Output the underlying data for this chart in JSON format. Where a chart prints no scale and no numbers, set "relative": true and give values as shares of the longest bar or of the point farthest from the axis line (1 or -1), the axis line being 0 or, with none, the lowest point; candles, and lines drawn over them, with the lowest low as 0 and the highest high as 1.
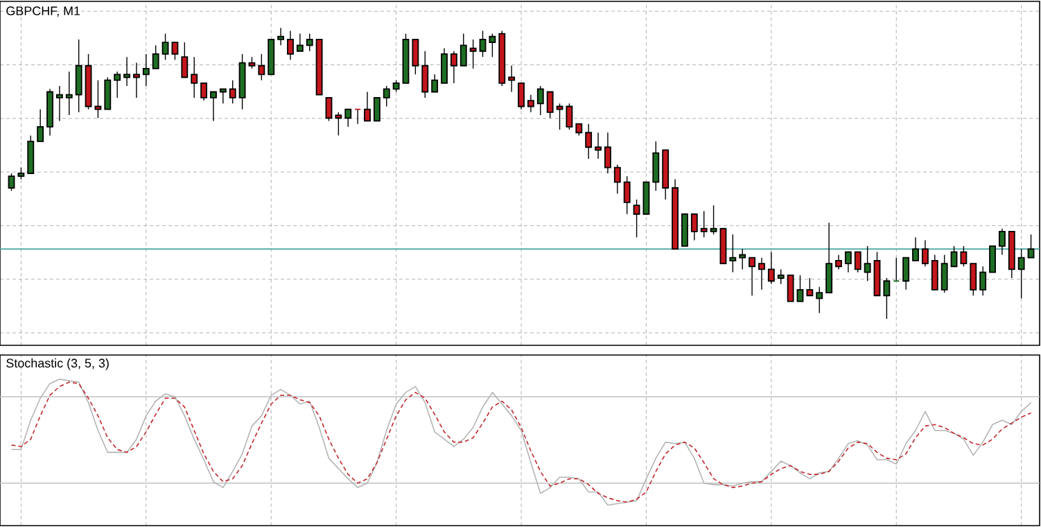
{
  "chart_data": [
    {
      "type": "candlestick",
      "title": "GBPCHF, M1",
      "relative": true,
      "grid": true,
      "categories": [
        null,
        null,
        null,
        null,
        null,
        null,
        null,
        null,
        null,
        null,
        null,
        null,
        null,
        null,
        null,
        null,
        null,
        null,
        null,
        null,
        null,
        null,
        null,
        null,
        null,
        null,
        null,
        null,
        null,
        null,
        null,
        null,
        null,
        null,
        null,
        null,
        null,
        null,
        null,
        null,
        null,
        null,
        null,
        null,
        null,
        null,
        null,
        null,
        null,
        null,
        null,
        null,
        null,
        null,
        null,
        null,
        null,
        null,
        null,
        null,
        null,
        null,
        null,
        null,
        null,
        null,
        null,
        null,
        null,
        null,
        null,
        null,
        null,
        null,
        null,
        null,
        null,
        null,
        null,
        null,
        null,
        null,
        null,
        null,
        null,
        null,
        null,
        null,
        null,
        null,
        null,
        null,
        null,
        null,
        null,
        null,
        null,
        null,
        null,
        null,
        null,
        null,
        null,
        null,
        null,
        null,
        null
      ],
      "ohlc": [
        [
          0.45,
          0.5,
          0.44,
          0.49
        ],
        [
          0.49,
          0.52,
          0.48,
          0.5
        ],
        [
          0.5,
          0.63,
          0.5,
          0.61
        ],
        [
          0.61,
          0.72,
          0.61,
          0.66
        ],
        [
          0.66,
          0.79,
          0.63,
          0.78
        ],
        [
          0.76,
          0.8,
          0.68,
          0.77
        ],
        [
          0.76,
          0.85,
          0.7,
          0.77
        ],
        [
          0.77,
          0.96,
          0.71,
          0.87
        ],
        [
          0.87,
          0.91,
          0.72,
          0.73
        ],
        [
          0.73,
          0.82,
          0.69,
          0.72
        ],
        [
          0.72,
          0.83,
          0.72,
          0.82
        ],
        [
          0.82,
          0.85,
          0.76,
          0.84
        ],
        [
          0.83,
          0.9,
          0.8,
          0.84
        ],
        [
          0.84,
          0.88,
          0.76,
          0.83
        ],
        [
          0.84,
          0.91,
          0.8,
          0.86
        ],
        [
          0.86,
          0.94,
          0.86,
          0.91
        ],
        [
          0.91,
          0.98,
          0.89,
          0.95
        ],
        [
          0.95,
          0.95,
          0.89,
          0.91
        ],
        [
          0.9,
          0.95,
          0.83,
          0.83
        ],
        [
          0.84,
          0.9,
          0.76,
          0.81
        ],
        [
          0.81,
          0.81,
          0.75,
          0.76
        ],
        [
          0.76,
          0.78,
          0.68,
          0.78
        ],
        [
          0.78,
          0.79,
          0.74,
          0.79
        ],
        [
          0.79,
          0.82,
          0.74,
          0.76
        ],
        [
          0.76,
          0.91,
          0.72,
          0.88
        ],
        [
          0.88,
          0.9,
          0.86,
          0.87
        ],
        [
          0.87,
          0.91,
          0.82,
          0.84
        ],
        [
          0.84,
          0.96,
          0.84,
          0.96
        ],
        [
          0.96,
          1.0,
          0.94,
          0.97
        ],
        [
          0.96,
          0.99,
          0.89,
          0.91
        ],
        [
          0.92,
          0.98,
          0.92,
          0.94
        ],
        [
          0.94,
          0.98,
          0.92,
          0.96
        ],
        [
          0.96,
          0.96,
          0.77,
          0.77
        ],
        [
          0.76,
          0.76,
          0.68,
          0.69
        ],
        [
          0.7,
          0.71,
          0.63,
          0.69
        ],
        [
          0.69,
          0.72,
          0.66,
          0.72
        ],
        [
          0.72,
          0.72,
          0.67,
          0.72
        ],
        [
          0.72,
          0.78,
          0.68,
          0.68
        ],
        [
          0.68,
          0.76,
          0.68,
          0.76
        ],
        [
          0.76,
          0.8,
          0.73,
          0.79
        ],
        [
          0.79,
          0.82,
          0.78,
          0.81
        ],
        [
          0.81,
          0.98,
          0.81,
          0.96
        ],
        [
          0.96,
          0.96,
          0.84,
          0.87
        ],
        [
          0.87,
          0.92,
          0.76,
          0.78
        ],
        [
          0.78,
          0.84,
          0.78,
          0.82
        ],
        [
          0.81,
          0.93,
          0.81,
          0.91
        ],
        [
          0.91,
          0.92,
          0.81,
          0.87
        ],
        [
          0.87,
          0.98,
          0.87,
          0.94
        ],
        [
          0.93,
          0.96,
          0.86,
          0.92
        ],
        [
          0.92,
          0.99,
          0.9,
          0.96
        ],
        [
          0.95,
          0.98,
          0.9,
          0.97
        ],
        [
          0.98,
          0.99,
          0.8,
          0.81
        ],
        [
          0.83,
          0.87,
          0.78,
          0.82
        ],
        [
          0.81,
          0.81,
          0.72,
          0.73
        ],
        [
          0.75,
          0.77,
          0.71,
          0.73
        ],
        [
          0.74,
          0.8,
          0.7,
          0.79
        ],
        [
          0.78,
          0.78,
          0.69,
          0.71
        ],
        [
          0.73,
          0.74,
          0.65,
          0.72
        ],
        [
          0.73,
          0.74,
          0.65,
          0.66
        ],
        [
          0.67,
          0.67,
          0.63,
          0.64
        ],
        [
          0.64,
          0.67,
          0.55,
          0.59
        ],
        [
          0.59,
          0.64,
          0.55,
          0.58
        ],
        [
          0.59,
          0.64,
          0.5,
          0.52
        ],
        [
          0.52,
          0.53,
          0.43,
          0.47
        ],
        [
          0.47,
          0.49,
          0.36,
          0.4
        ],
        [
          0.39,
          0.41,
          0.28,
          0.36
        ],
        [
          0.36,
          0.47,
          0.36,
          0.47
        ],
        [
          0.47,
          0.61,
          0.44,
          0.57
        ],
        [
          0.58,
          0.58,
          0.41,
          0.45
        ],
        [
          0.45,
          0.48,
          0.24,
          0.24
        ],
        [
          0.25,
          0.36,
          0.25,
          0.36
        ],
        [
          0.36,
          0.36,
          0.27,
          0.3
        ],
        [
          0.31,
          0.37,
          0.28,
          0.3
        ],
        [
          0.3,
          0.39,
          0.29,
          0.31
        ],
        [
          0.31,
          0.31,
          0.19,
          0.19
        ],
        [
          0.2,
          0.29,
          0.16,
          0.21
        ],
        [
          0.21,
          0.24,
          0.17,
          0.22
        ],
        [
          0.21,
          0.21,
          0.08,
          0.18
        ],
        [
          0.19,
          0.21,
          0.1,
          0.17
        ],
        [
          0.17,
          0.23,
          0.12,
          0.13
        ],
        [
          0.14,
          0.17,
          0.12,
          0.15
        ],
        [
          0.15,
          0.15,
          0.06,
          0.06
        ],
        [
          0.06,
          0.15,
          0.06,
          0.1
        ],
        [
          0.1,
          0.14,
          0.08,
          0.08
        ],
        [
          0.07,
          0.11,
          0.02,
          0.09
        ],
        [
          0.09,
          0.33,
          0.09,
          0.19
        ],
        [
          0.2,
          0.22,
          0.17,
          0.18
        ],
        [
          0.19,
          0.23,
          0.16,
          0.23
        ],
        [
          0.23,
          0.23,
          0.16,
          0.17
        ],
        [
          0.16,
          0.25,
          0.13,
          0.19
        ],
        [
          0.2,
          0.23,
          0.08,
          0.08
        ],
        [
          0.08,
          0.14,
          0.0,
          0.13
        ],
        [
          0.13,
          0.21,
          0.13,
          0.13
        ],
        [
          0.13,
          0.21,
          0.1,
          0.21
        ],
        [
          0.2,
          0.28,
          0.2,
          0.24
        ],
        [
          0.24,
          0.27,
          0.18,
          0.19
        ],
        [
          0.2,
          0.22,
          0.1,
          0.1
        ],
        [
          0.1,
          0.22,
          0.09,
          0.19
        ],
        [
          0.18,
          0.25,
          0.18,
          0.23
        ],
        [
          0.23,
          0.25,
          0.18,
          0.19
        ],
        [
          0.19,
          0.19,
          0.08,
          0.1
        ],
        [
          0.1,
          0.18,
          0.08,
          0.16
        ],
        [
          0.16,
          0.25,
          0.16,
          0.25
        ],
        [
          0.25,
          0.31,
          0.22,
          0.3
        ],
        [
          0.3,
          0.3,
          0.14,
          0.17
        ],
        [
          0.17,
          0.24,
          0.07,
          0.21
        ],
        [
          0.21,
          0.29,
          0.21,
          0.24
        ]
      ],
      "colors": [
        "#1e6e23",
        "#1e6e23",
        "#1e6e23",
        "#1e6e23",
        "#1e6e23",
        "#1e6e23",
        "#1e6e23",
        "#1e6e23",
        "#c4161c",
        "#c4161c",
        "#1e6e23",
        "#1e6e23",
        "#1e6e23",
        "#c4161c",
        "#1e6e23",
        "#1e6e23",
        "#1e6e23",
        "#c4161c",
        "#c4161c",
        "#c4161c",
        "#c4161c",
        "#1e6e23",
        "#1e6e23",
        "#c4161c",
        "#1e6e23",
        "#c4161c",
        "#c4161c",
        "#1e6e23",
        "#1e6e23",
        "#c4161c",
        "#1e6e23",
        "#1e6e23",
        "#c4161c",
        "#c4161c",
        "#c4161c",
        "#1e6e23",
        "#c4161c",
        "#c4161c",
        "#1e6e23",
        "#1e6e23",
        "#1e6e23",
        "#1e6e23",
        "#c4161c",
        "#c4161c",
        "#1e6e23",
        "#1e6e23",
        "#c4161c",
        "#1e6e23",
        "#c4161c",
        "#1e6e23",
        "#1e6e23",
        "#c4161c",
        "#c4161c",
        "#c4161c",
        "#c4161c",
        "#1e6e23",
        "#c4161c",
        "#c4161c",
        "#c4161c",
        "#c4161c",
        "#c4161c",
        "#c4161c",
        "#c4161c",
        "#c4161c",
        "#c4161c",
        "#c4161c",
        "#1e6e23",
        "#1e6e23",
        "#c4161c",
        "#c4161c",
        "#1e6e23",
        "#c4161c",
        "#c4161c",
        "#1e6e23",
        "#c4161c",
        "#1e6e23",
        "#1e6e23",
        "#c4161c",
        "#c4161c",
        "#c4161c",
        "#1e6e23",
        "#c4161c",
        "#1e6e23",
        "#c4161c",
        "#1e6e23",
        "#1e6e23",
        "#c4161c",
        "#1e6e23",
        "#c4161c",
        "#1e6e23",
        "#c4161c",
        "#1e6e23",
        "#1e6e23",
        "#1e6e23",
        "#1e6e23",
        "#c4161c",
        "#c4161c",
        "#1e6e23",
        "#1e6e23",
        "#c4161c",
        "#c4161c",
        "#1e6e23",
        "#1e6e23",
        "#1e6e23",
        "#c4161c",
        "#1e6e23",
        "#1e6e23"
      ],
      "ref_lines": [
        {
          "axis": "y",
          "value": 0.24,
          "color": "#4aa6a0"
        }
      ]
    },
    {
      "type": "line",
      "title": "Stochastic (3, 5, 3)",
      "relative": true,
      "grid": "x",
      "categories": [
        null,
        null,
        null,
        null,
        null,
        null,
        null,
        null,
        null,
        null,
        null,
        null,
        null,
        null,
        null,
        null,
        null,
        null,
        null,
        null,
        null,
        null,
        null,
        null,
        null,
        null,
        null,
        null,
        null,
        null,
        null,
        null,
        null,
        null,
        null,
        null,
        null,
        null,
        null,
        null,
        null,
        null,
        null,
        null,
        null,
        null,
        null,
        null,
        null,
        null,
        null,
        null,
        null,
        null,
        null,
        null,
        null,
        null,
        null,
        null,
        null,
        null,
        null,
        null,
        null,
        null,
        null,
        null,
        null,
        null,
        null,
        null,
        null,
        null,
        null,
        null,
        null,
        null,
        null,
        null,
        null,
        null,
        null,
        null,
        null,
        null,
        null,
        null,
        null,
        null,
        null,
        null,
        null,
        null,
        null,
        null,
        null,
        null,
        null,
        null,
        null,
        null,
        null,
        null,
        null,
        null,
        null
      ],
      "series": [
        {
          "color": "#b4b4b4",
          "line_style": "solid",
          "values": [
            0.52,
            0.52,
            0.72,
            0.87,
            0.97,
            1.0,
            0.99,
            0.98,
            0.84,
            0.65,
            0.5,
            0.5,
            0.5,
            0.59,
            0.75,
            0.85,
            0.9,
            0.88,
            0.75,
            0.59,
            0.45,
            0.3,
            0.26,
            0.37,
            0.49,
            0.68,
            0.75,
            0.89,
            0.93,
            0.89,
            0.83,
            0.85,
            0.67,
            0.46,
            0.39,
            0.32,
            0.26,
            0.29,
            0.43,
            0.65,
            0.83,
            0.91,
            0.95,
            0.84,
            0.64,
            0.59,
            0.54,
            0.59,
            0.67,
            0.81,
            0.91,
            0.83,
            0.75,
            0.65,
            0.43,
            0.22,
            0.26,
            0.33,
            0.33,
            0.32,
            0.23,
            0.23,
            0.14,
            0.15,
            0.16,
            0.17,
            0.32,
            0.46,
            0.57,
            0.56,
            0.57,
            0.46,
            0.29,
            0.28,
            0.28,
            0.27,
            0.29,
            0.3,
            0.3,
            0.37,
            0.44,
            0.41,
            0.36,
            0.32,
            0.36,
            0.37,
            0.46,
            0.56,
            0.58,
            0.55,
            0.45,
            0.45,
            0.42,
            0.56,
            0.65,
            0.78,
            0.65,
            0.65,
            0.63,
            0.59,
            0.48,
            0.57,
            0.69,
            0.72,
            0.69,
            0.78,
            0.84
          ]
        },
        {
          "color": "#c0282d",
          "line_style": "dashed",
          "values": [
            0.55,
            0.54,
            0.59,
            0.75,
            0.89,
            0.95,
            0.98,
            0.97,
            0.87,
            0.75,
            0.6,
            0.52,
            0.5,
            0.54,
            0.64,
            0.76,
            0.87,
            0.87,
            0.81,
            0.65,
            0.49,
            0.37,
            0.3,
            0.32,
            0.41,
            0.56,
            0.7,
            0.83,
            0.89,
            0.89,
            0.86,
            0.84,
            0.75,
            0.59,
            0.46,
            0.35,
            0.29,
            0.32,
            0.43,
            0.59,
            0.75,
            0.86,
            0.91,
            0.87,
            0.76,
            0.64,
            0.57,
            0.57,
            0.6,
            0.7,
            0.81,
            0.85,
            0.79,
            0.67,
            0.51,
            0.37,
            0.27,
            0.29,
            0.32,
            0.32,
            0.28,
            0.22,
            0.19,
            0.17,
            0.16,
            0.18,
            0.23,
            0.37,
            0.49,
            0.55,
            0.57,
            0.53,
            0.43,
            0.32,
            0.28,
            0.26,
            0.27,
            0.29,
            0.3,
            0.35,
            0.39,
            0.41,
            0.37,
            0.35,
            0.35,
            0.37,
            0.44,
            0.53,
            0.57,
            0.56,
            0.5,
            0.46,
            0.45,
            0.49,
            0.6,
            0.68,
            0.69,
            0.67,
            0.63,
            0.6,
            0.56,
            0.55,
            0.59,
            0.66,
            0.7,
            0.74,
            0.77
          ]
        }
      ],
      "ref_lines": [
        {
          "axis": "y",
          "value": 0.88,
          "color": "#c0c0c0"
        },
        {
          "axis": "y",
          "value": 0.29,
          "color": "#c0c0c0"
        }
      ]
    }
  ]
}
